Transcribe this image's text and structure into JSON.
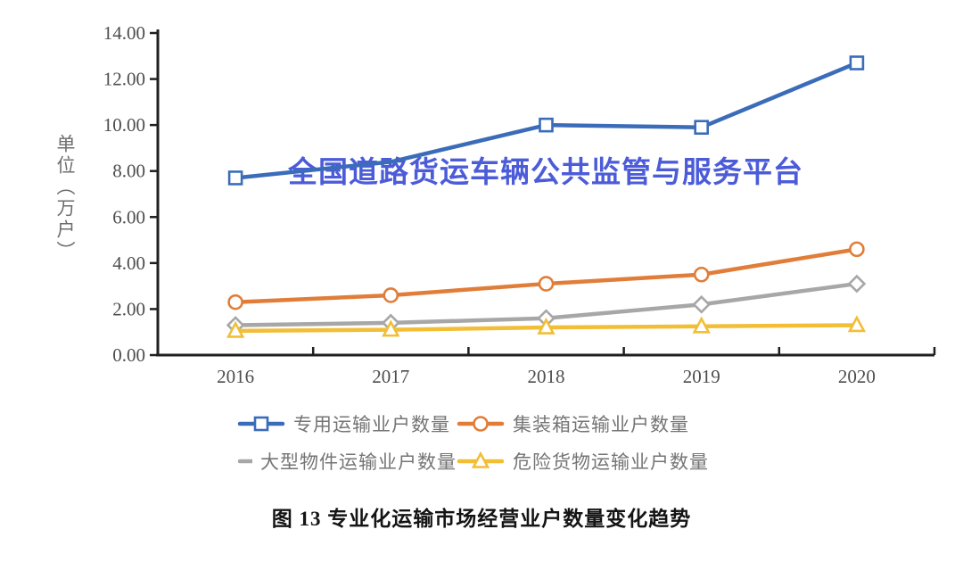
{
  "watermark": {
    "text": "全国道路货运车辆公共监管与服务平台",
    "color": "#3D4FD6"
  },
  "caption": "图 13 专业化运输市场经营业户数量变化趋势",
  "y_axis_title": "单位（万户）",
  "colors": {
    "axis": "#1f1f1f",
    "tick_label": "#4d4d4d",
    "legend_text": "#757575"
  },
  "chart_data": {
    "type": "line",
    "title": "图 13 专业化运输市场经营业户数量变化趋势",
    "categories": [
      "2016",
      "2017",
      "2018",
      "2019",
      "2020"
    ],
    "series": [
      {
        "name": "专用运输业户数量",
        "color": "#3B6CB9",
        "marker": "square",
        "values": [
          7.7,
          8.4,
          10.0,
          9.9,
          12.7
        ],
        "hidden_marker_indices": [
          1
        ]
      },
      {
        "name": "集装箱运输业户数量",
        "color": "#E07E39",
        "marker": "circle",
        "values": [
          2.3,
          2.6,
          3.1,
          3.5,
          4.6
        ]
      },
      {
        "name": "大型物件运输业户数量",
        "color": "#A7A7A7",
        "marker": "diamond",
        "values": [
          1.3,
          1.4,
          1.6,
          2.2,
          3.1
        ]
      },
      {
        "name": "危险货物运输业户数量",
        "color": "#F2BE35",
        "marker": "triangle",
        "values": [
          1.05,
          1.1,
          1.2,
          1.25,
          1.3
        ]
      }
    ],
    "xlabel": "",
    "ylabel": "单位（万户）",
    "ylim": [
      0,
      14
    ],
    "ytick_step": 2,
    "ytick_format": "two_decimals",
    "grid": false,
    "legend_position": "bottom"
  }
}
